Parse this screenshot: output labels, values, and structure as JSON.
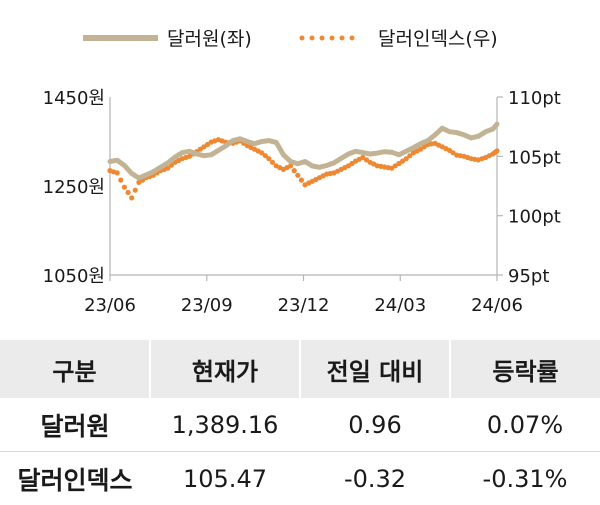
{
  "chart_data": {
    "type": "line",
    "legend": [
      {
        "label": "달러원(좌)",
        "color": "#c2b394",
        "style": "solid"
      },
      {
        "label": "달러인덱스(우)",
        "color": "#ee8833",
        "style": "dotted"
      }
    ],
    "x_ticks": [
      "23/06",
      "23/09",
      "23/12",
      "24/03",
      "24/06"
    ],
    "y_left": {
      "ticks": [
        "1450원",
        "1250원",
        "1050원"
      ],
      "range": [
        1050,
        1450
      ]
    },
    "y_right": {
      "ticks": [
        "110pt",
        "105pt",
        "100pt",
        "95pt"
      ],
      "range": [
        95,
        110
      ]
    },
    "x_range": [
      "2023-06-01",
      "2024-06-10"
    ],
    "grid": false,
    "legend_position": "top",
    "series": [
      {
        "name": "달러원(좌)",
        "axis": "left",
        "points": [
          [
            "2023-06-01",
            1305
          ],
          [
            "2023-06-08",
            1308
          ],
          [
            "2023-06-15",
            1296
          ],
          [
            "2023-06-22",
            1278
          ],
          [
            "2023-06-29",
            1268
          ],
          [
            "2023-07-06",
            1275
          ],
          [
            "2023-07-13",
            1282
          ],
          [
            "2023-07-20",
            1292
          ],
          [
            "2023-07-27",
            1302
          ],
          [
            "2023-08-03",
            1315
          ],
          [
            "2023-08-10",
            1325
          ],
          [
            "2023-08-17",
            1328
          ],
          [
            "2023-08-24",
            1322
          ],
          [
            "2023-08-31",
            1318
          ],
          [
            "2023-09-07",
            1320
          ],
          [
            "2023-09-14",
            1330
          ],
          [
            "2023-09-21",
            1340
          ],
          [
            "2023-09-28",
            1352
          ],
          [
            "2023-10-05",
            1356
          ],
          [
            "2023-10-12",
            1350
          ],
          [
            "2023-10-19",
            1345
          ],
          [
            "2023-10-26",
            1350
          ],
          [
            "2023-11-02",
            1352
          ],
          [
            "2023-11-09",
            1348
          ],
          [
            "2023-11-16",
            1320
          ],
          [
            "2023-11-23",
            1305
          ],
          [
            "2023-11-30",
            1300
          ],
          [
            "2023-12-07",
            1305
          ],
          [
            "2023-12-14",
            1295
          ],
          [
            "2023-12-21",
            1292
          ],
          [
            "2023-12-28",
            1296
          ],
          [
            "2024-01-04",
            1302
          ],
          [
            "2024-01-11",
            1312
          ],
          [
            "2024-01-18",
            1322
          ],
          [
            "2024-01-25",
            1328
          ],
          [
            "2024-02-01",
            1325
          ],
          [
            "2024-02-08",
            1322
          ],
          [
            "2024-02-15",
            1324
          ],
          [
            "2024-02-22",
            1327
          ],
          [
            "2024-02-29",
            1326
          ],
          [
            "2024-03-07",
            1320
          ],
          [
            "2024-03-14",
            1328
          ],
          [
            "2024-03-21",
            1336
          ],
          [
            "2024-03-28",
            1345
          ],
          [
            "2024-04-04",
            1352
          ],
          [
            "2024-04-11",
            1365
          ],
          [
            "2024-04-18",
            1380
          ],
          [
            "2024-04-25",
            1372
          ],
          [
            "2024-05-02",
            1370
          ],
          [
            "2024-05-09",
            1365
          ],
          [
            "2024-05-16",
            1358
          ],
          [
            "2024-05-23",
            1362
          ],
          [
            "2024-05-30",
            1372
          ],
          [
            "2024-06-06",
            1378
          ],
          [
            "2024-06-10",
            1389
          ]
        ]
      },
      {
        "name": "달러인덱스(우)",
        "axis": "right",
        "points": [
          [
            "2023-06-01",
            103.8
          ],
          [
            "2023-06-08",
            103.6
          ],
          [
            "2023-06-15",
            102.4
          ],
          [
            "2023-06-22",
            101.5
          ],
          [
            "2023-06-29",
            102.8
          ],
          [
            "2023-07-06",
            103.2
          ],
          [
            "2023-07-13",
            103.4
          ],
          [
            "2023-07-20",
            103.8
          ],
          [
            "2023-07-27",
            104.0
          ],
          [
            "2023-08-03",
            104.5
          ],
          [
            "2023-08-10",
            104.8
          ],
          [
            "2023-08-17",
            105.0
          ],
          [
            "2023-08-24",
            105.4
          ],
          [
            "2023-08-31",
            105.8
          ],
          [
            "2023-09-07",
            106.2
          ],
          [
            "2023-09-14",
            106.4
          ],
          [
            "2023-09-21",
            106.2
          ],
          [
            "2023-09-28",
            106.1
          ],
          [
            "2023-10-05",
            106.3
          ],
          [
            "2023-10-12",
            105.9
          ],
          [
            "2023-10-19",
            105.6
          ],
          [
            "2023-10-26",
            105.3
          ],
          [
            "2023-11-02",
            104.8
          ],
          [
            "2023-11-09",
            104.2
          ],
          [
            "2023-11-16",
            103.9
          ],
          [
            "2023-11-23",
            104.2
          ],
          [
            "2023-11-30",
            103.4
          ],
          [
            "2023-12-07",
            102.6
          ],
          [
            "2023-12-14",
            102.9
          ],
          [
            "2023-12-21",
            103.2
          ],
          [
            "2023-12-28",
            103.5
          ],
          [
            "2024-01-04",
            103.6
          ],
          [
            "2024-01-11",
            103.9
          ],
          [
            "2024-01-18",
            104.2
          ],
          [
            "2024-01-25",
            104.6
          ],
          [
            "2024-02-01",
            104.9
          ],
          [
            "2024-02-08",
            104.5
          ],
          [
            "2024-02-15",
            104.2
          ],
          [
            "2024-02-22",
            104.1
          ],
          [
            "2024-02-29",
            104.0
          ],
          [
            "2024-03-07",
            104.4
          ],
          [
            "2024-03-14",
            104.8
          ],
          [
            "2024-03-21",
            105.3
          ],
          [
            "2024-03-28",
            105.6
          ],
          [
            "2024-04-04",
            106.0
          ],
          [
            "2024-04-11",
            106.1
          ],
          [
            "2024-04-18",
            105.8
          ],
          [
            "2024-04-25",
            105.5
          ],
          [
            "2024-05-02",
            105.1
          ],
          [
            "2024-05-09",
            105.0
          ],
          [
            "2024-05-16",
            104.8
          ],
          [
            "2024-05-23",
            104.7
          ],
          [
            "2024-05-30",
            104.9
          ],
          [
            "2024-06-06",
            105.2
          ],
          [
            "2024-06-10",
            105.47
          ]
        ]
      }
    ]
  },
  "table": {
    "headers": [
      "구분",
      "현재가",
      "전일 대비",
      "등락률"
    ],
    "rows": [
      [
        "달러원",
        "1,389.16",
        "0.96",
        "0.07%"
      ],
      [
        "달러인덱스",
        "105.47",
        "-0.32",
        "-0.31%"
      ]
    ]
  }
}
